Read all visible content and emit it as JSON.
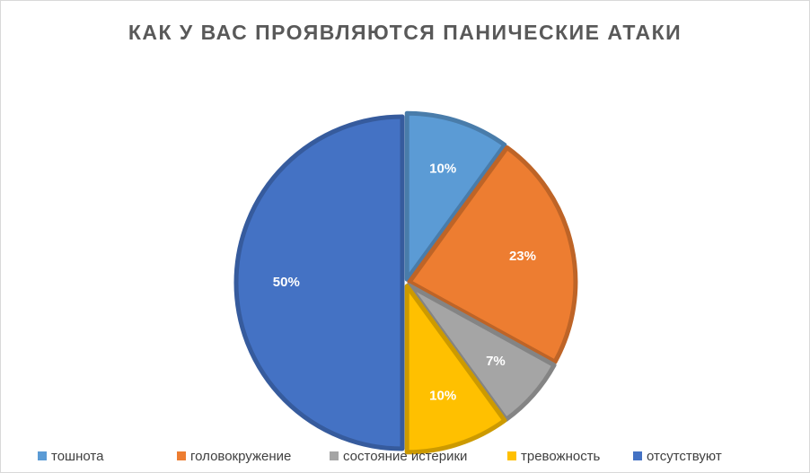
{
  "chart_data": {
    "type": "pie",
    "title": "КАК У ВАС ПРОЯВЛЯЮТСЯ ПАНИЧЕСКИЕ АТАКИ",
    "categories": [
      "тошнота",
      "головокружение",
      "состояние истерики",
      "тревожность",
      "отсутствуют"
    ],
    "values": [
      10,
      23,
      7,
      10,
      50
    ],
    "value_labels": [
      "10%",
      "23%",
      "7%",
      "10%",
      "50%"
    ],
    "colors": [
      "#5b9bd5",
      "#ed7d31",
      "#a5a5a5",
      "#ffc000",
      "#4472c4"
    ],
    "legend": "bottom"
  }
}
